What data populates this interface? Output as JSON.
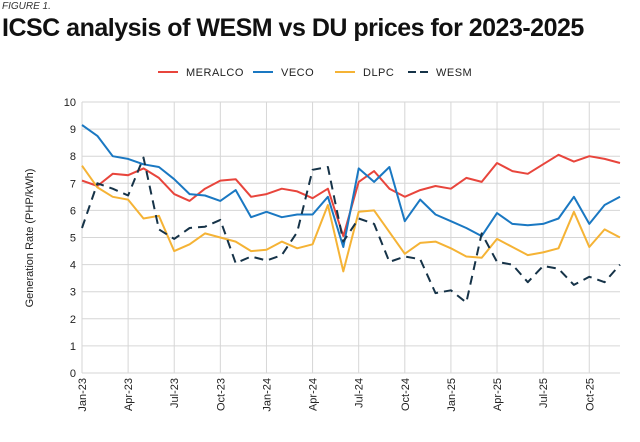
{
  "figure_label": "FIGURE 1.",
  "title": "ICSC analysis of WESM vs DU prices for 2023-2025",
  "chart_data": {
    "type": "line",
    "title": "ICSC analysis of WESM vs DU prices for 2023-2025",
    "xlabel": "",
    "ylabel": "Generation Rate (PHP/kWh)",
    "ylim": [
      0,
      10
    ],
    "yticks": [
      0,
      1,
      2,
      3,
      4,
      5,
      6,
      7,
      8,
      9,
      10
    ],
    "grid": true,
    "legend_position": "top-center",
    "x": [
      "Jan-23",
      "Feb-23",
      "Mar-23",
      "Apr-23",
      "May-23",
      "Jun-23",
      "Jul-23",
      "Aug-23",
      "Sep-23",
      "Oct-23",
      "Nov-23",
      "Dec-23",
      "Jan-24",
      "Feb-24",
      "Mar-24",
      "Apr-24",
      "May-24",
      "Jun-24",
      "Jul-24",
      "Aug-24",
      "Sep-24",
      "Oct-24",
      "Nov-24",
      "Dec-24",
      "Jan-25",
      "Feb-25",
      "Mar-25",
      "Apr-25",
      "May-25",
      "Jun-25",
      "Jul-25",
      "Aug-25",
      "Sep-25",
      "Oct-25",
      "Nov-25",
      "Dec-25"
    ],
    "xtick_labels": [
      "Jan-23",
      "Apr-23",
      "Jul-23",
      "Oct-23",
      "Jan-24",
      "Apr-24",
      "Jul-24",
      "Oct-24",
      "Jan-25",
      "Apr-25",
      "Jul-25",
      "Oct-25"
    ],
    "series": [
      {
        "name": "MERALCO",
        "color": "#e8453c",
        "dash": "solid",
        "values": [
          7.1,
          6.9,
          7.35,
          7.3,
          7.55,
          7.2,
          6.6,
          6.35,
          6.8,
          7.1,
          7.15,
          6.5,
          6.6,
          6.8,
          6.7,
          6.45,
          6.8,
          5.05,
          7.05,
          7.45,
          6.8,
          6.5,
          6.75,
          6.9,
          6.8,
          7.2,
          7.05,
          7.75,
          7.45,
          7.35,
          7.7,
          8.05,
          7.8,
          8.0,
          7.9,
          7.75
        ]
      },
      {
        "name": "VECO",
        "color": "#1a78c2",
        "dash": "solid",
        "values": [
          9.15,
          8.75,
          8.0,
          7.9,
          7.7,
          7.6,
          7.15,
          6.6,
          6.55,
          6.35,
          6.75,
          5.75,
          5.95,
          5.75,
          5.85,
          5.85,
          6.5,
          4.65,
          7.55,
          7.05,
          7.6,
          5.6,
          6.4,
          5.85,
          5.6,
          5.35,
          5.05,
          5.9,
          5.5,
          5.45,
          5.5,
          5.7,
          6.5,
          5.5,
          6.2,
          6.5
        ]
      },
      {
        "name": "DLPC",
        "color": "#f5b335",
        "dash": "solid",
        "values": [
          7.65,
          6.85,
          6.5,
          6.4,
          5.7,
          5.8,
          4.5,
          4.75,
          5.15,
          5.0,
          4.85,
          4.5,
          4.55,
          4.85,
          4.6,
          4.75,
          6.2,
          3.75,
          5.95,
          6.0,
          5.2,
          4.4,
          4.8,
          4.85,
          4.6,
          4.3,
          4.25,
          4.95,
          4.65,
          4.35,
          4.45,
          4.6,
          5.95,
          4.65,
          5.3,
          5.0
        ]
      },
      {
        "name": "WESM",
        "color": "#163348",
        "dash": "dashed",
        "values": [
          5.35,
          7.0,
          6.8,
          6.55,
          7.95,
          5.3,
          4.95,
          5.35,
          5.4,
          5.65,
          4.05,
          4.3,
          4.15,
          4.35,
          5.2,
          7.5,
          7.6,
          4.85,
          5.7,
          5.5,
          4.1,
          4.3,
          4.2,
          2.95,
          3.05,
          2.6,
          5.15,
          4.1,
          4.0,
          3.35,
          3.95,
          3.85,
          3.25,
          3.55,
          3.35,
          4.0
        ]
      }
    ]
  }
}
